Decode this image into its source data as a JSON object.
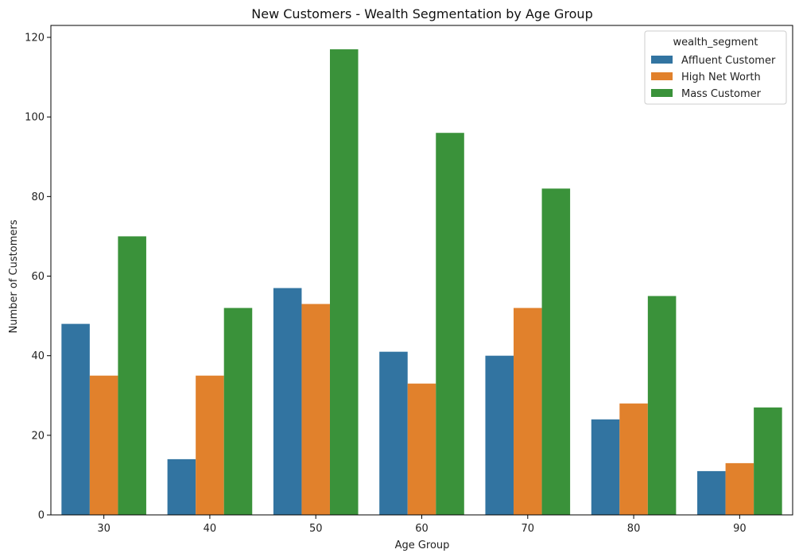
{
  "chart_data": {
    "type": "bar",
    "title": "New Customers - Wealth Segmentation by Age Group",
    "xlabel": "Age Group",
    "ylabel": "Number of Customers",
    "categories": [
      "30",
      "40",
      "50",
      "60",
      "70",
      "80",
      "90"
    ],
    "ylim": [
      0,
      123
    ],
    "yticks": [
      0,
      20,
      40,
      60,
      80,
      100,
      120
    ],
    "grid": false,
    "legend": {
      "title": "wealth_segment",
      "position": "top-right"
    },
    "series": [
      {
        "name": "Affluent Customer",
        "color": "#3274a1",
        "values": [
          48,
          14,
          57,
          41,
          40,
          24,
          11
        ]
      },
      {
        "name": "High Net Worth",
        "color": "#e1812c",
        "values": [
          35,
          35,
          53,
          33,
          52,
          28,
          13
        ]
      },
      {
        "name": "Mass Customer",
        "color": "#3a923a",
        "values": [
          70,
          52,
          117,
          96,
          82,
          55,
          27
        ]
      }
    ]
  }
}
